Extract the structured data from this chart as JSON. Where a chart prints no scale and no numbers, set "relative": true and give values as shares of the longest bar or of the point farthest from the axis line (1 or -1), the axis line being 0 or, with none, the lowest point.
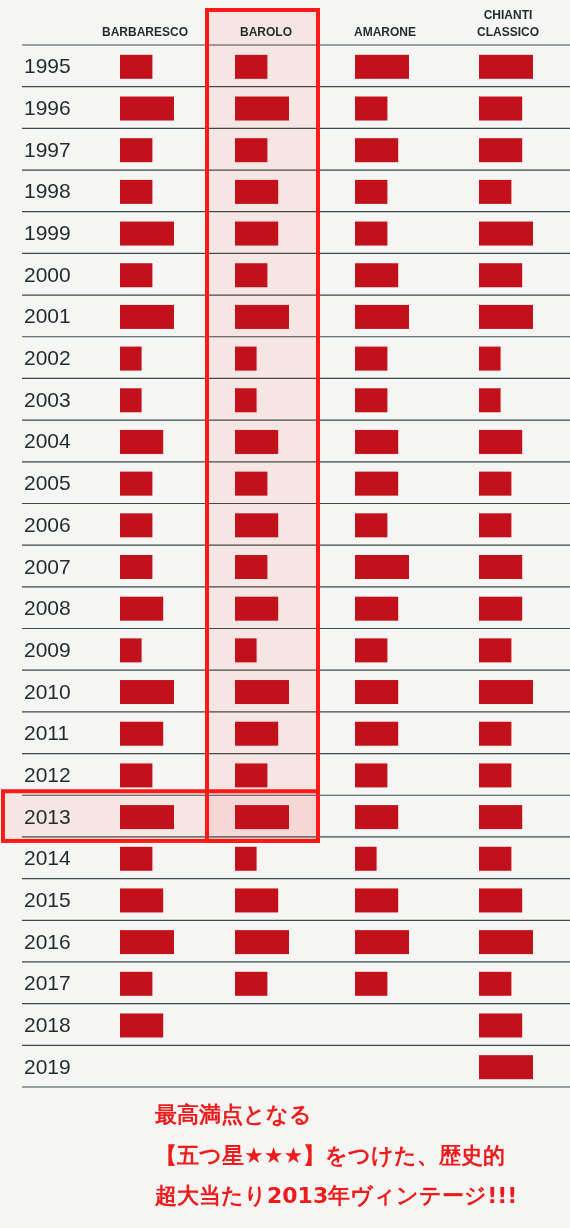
{
  "chart_data": [
    {
      "type": "bar",
      "orientation": "horizontal",
      "relative": true,
      "title": "BARBARESCO",
      "categories": [
        "1995",
        "1996",
        "1997",
        "1998",
        "1999",
        "2000",
        "2001",
        "2002",
        "2003",
        "2004",
        "2005",
        "2006",
        "2007",
        "2008",
        "2009",
        "2010",
        "2011",
        "2012",
        "2013",
        "2014",
        "2015",
        "2016",
        "2017",
        "2018",
        "2019"
      ],
      "values": [
        0.6,
        1,
        0.6,
        0.6,
        1,
        0.6,
        1,
        0.4,
        0.4,
        0.8,
        0.6,
        0.6,
        0.6,
        0.8,
        0.4,
        1,
        0.8,
        0.6,
        1,
        0.6,
        0.8,
        1,
        0.6,
        0.8,
        null
      ],
      "color": "#c3111b",
      "grid": "y",
      "bands": [
        {
          "axis": "y",
          "from": "2013",
          "to": "2013",
          "color": "#ff1a1a"
        }
      ]
    },
    {
      "type": "bar",
      "orientation": "horizontal",
      "relative": true,
      "title": "BAROLO",
      "tick_labels": false,
      "categories": [
        "1995",
        "1996",
        "1997",
        "1998",
        "1999",
        "2000",
        "2001",
        "2002",
        "2003",
        "2004",
        "2005",
        "2006",
        "2007",
        "2008",
        "2009",
        "2010",
        "2011",
        "2012",
        "2013",
        "2014",
        "2015",
        "2016",
        "2017",
        "2018",
        "2019"
      ],
      "values": [
        0.6,
        1,
        0.6,
        0.8,
        0.8,
        0.6,
        1,
        0.4,
        0.4,
        0.8,
        0.6,
        0.8,
        0.6,
        0.8,
        0.4,
        1,
        0.8,
        0.6,
        1,
        0.4,
        0.8,
        1,
        0.6,
        null,
        null
      ],
      "color": "#c3111b",
      "grid": "y",
      "bands": [
        {
          "axis": "y",
          "from": "1995",
          "to": "2013",
          "color": "#ff1a1a"
        },
        {
          "axis": "y",
          "from": "2013",
          "to": "2013",
          "color": "#ff1a1a"
        }
      ]
    },
    {
      "type": "bar",
      "orientation": "horizontal",
      "relative": true,
      "title": "AMARONE",
      "tick_labels": false,
      "categories": [
        "1995",
        "1996",
        "1997",
        "1998",
        "1999",
        "2000",
        "2001",
        "2002",
        "2003",
        "2004",
        "2005",
        "2006",
        "2007",
        "2008",
        "2009",
        "2010",
        "2011",
        "2012",
        "2013",
        "2014",
        "2015",
        "2016",
        "2017",
        "2018",
        "2019"
      ],
      "values": [
        1,
        0.6,
        0.8,
        0.6,
        0.6,
        0.8,
        1,
        0.6,
        0.6,
        0.8,
        0.8,
        0.6,
        1,
        0.8,
        0.6,
        0.8,
        0.8,
        0.6,
        0.8,
        0.4,
        0.8,
        1,
        0.6,
        null,
        null
      ],
      "color": "#c3111b",
      "grid": "y"
    },
    {
      "type": "bar",
      "orientation": "horizontal",
      "relative": true,
      "title": "CHIANTI CLASSICO",
      "tick_labels": false,
      "categories": [
        "1995",
        "1996",
        "1997",
        "1998",
        "1999",
        "2000",
        "2001",
        "2002",
        "2003",
        "2004",
        "2005",
        "2006",
        "2007",
        "2008",
        "2009",
        "2010",
        "2011",
        "2012",
        "2013",
        "2014",
        "2015",
        "2016",
        "2017",
        "2018",
        "2019"
      ],
      "values": [
        1,
        0.8,
        0.8,
        0.6,
        1,
        0.8,
        1,
        0.4,
        0.4,
        0.8,
        0.6,
        0.6,
        0.8,
        0.8,
        0.6,
        1,
        0.6,
        0.6,
        0.8,
        0.6,
        0.8,
        1,
        0.6,
        0.8,
        1
      ],
      "color": "#c3111b",
      "grid": "y"
    },
    {
      "type": "other",
      "annotations": [
        "最高満点となる",
        "【五つ星★★★】をつけた、歴史的",
        "超大当たり2013年ヴィンテージ!!!"
      ]
    }
  ]
}
